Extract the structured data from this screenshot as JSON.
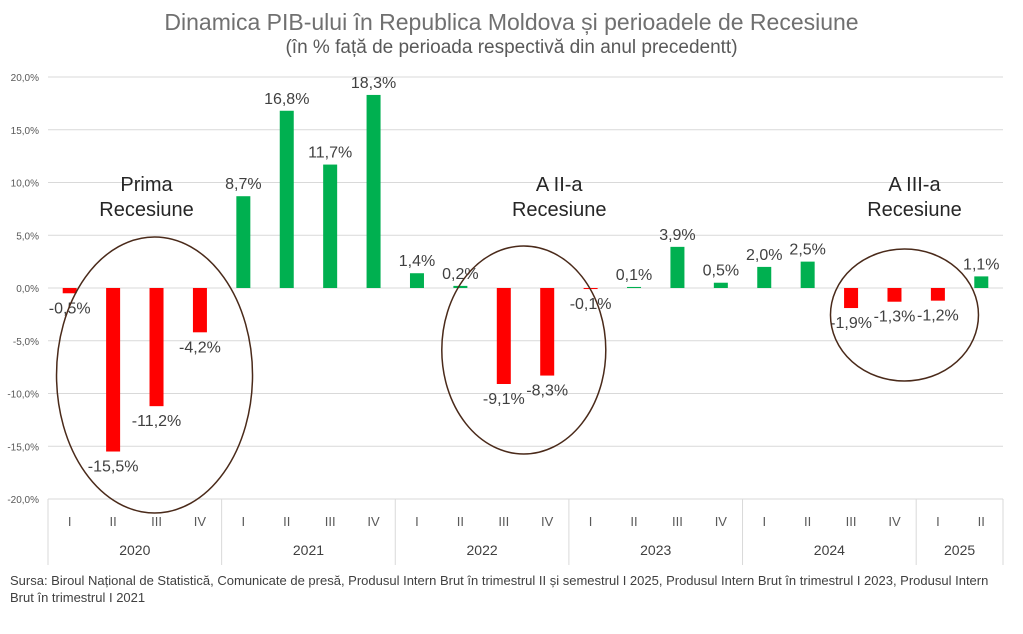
{
  "title": "Dinamica PIB-ului în Republica Moldova și perioadele de Recesiune",
  "subtitle": "(în % față de perioada respectivă din anul precedentt)",
  "source": "Sursa: Biroul Național de Statistică, Comunicate de presă, Produsul Intern Brut în trimestrul II și semestrul I 2025, Produsul Intern Brut în trimestrul I 2023, Produsul Intern Brut în trimestrul I 2021",
  "colors": {
    "positive": "#00b050",
    "negative": "#ff0000",
    "circle": "#4a2a1a",
    "grid": "#d9d9d9"
  },
  "annotations": [
    {
      "line1": "Prima",
      "line2": "Recesiune"
    },
    {
      "line1": "A II-a",
      "line2": "Recesiune"
    },
    {
      "line1": "A III-a",
      "line2": "Recesiune"
    }
  ],
  "chart_data": {
    "type": "bar",
    "ylim": [
      -20,
      20
    ],
    "yticks": [
      "-20,0%",
      "-15,0%",
      "-10,0%",
      "-5,0%",
      "0,0%",
      "5,0%",
      "10,0%",
      "15,0%",
      "20,0%"
    ],
    "grid": true,
    "years": [
      {
        "year": "2020",
        "quarters": [
          "I",
          "II",
          "III",
          "IV"
        ],
        "values": [
          -0.5,
          -15.5,
          -11.2,
          -4.2
        ],
        "labels": [
          "-0,5%",
          "-15,5%",
          "-11,2%",
          "-4,2%"
        ]
      },
      {
        "year": "2021",
        "quarters": [
          "I",
          "II",
          "III",
          "IV"
        ],
        "values": [
          8.7,
          16.8,
          11.7,
          18.3
        ],
        "labels": [
          "8,7%",
          "16,8%",
          "11,7%",
          "18,3%"
        ]
      },
      {
        "year": "2022",
        "quarters": [
          "I",
          "II",
          "III",
          "IV"
        ],
        "values": [
          1.4,
          0.2,
          -9.1,
          -8.3
        ],
        "labels": [
          "1,4%",
          "0,2%",
          "-9,1%",
          "-8,3%"
        ]
      },
      {
        "year": "2023",
        "quarters": [
          "I",
          "II",
          "III",
          "IV"
        ],
        "values": [
          -0.1,
          0.1,
          3.9,
          0.5
        ],
        "labels": [
          "-0,1%",
          "0,1%",
          "3,9%",
          "0,5%"
        ]
      },
      {
        "year": "2024",
        "quarters": [
          "I",
          "II",
          "III",
          "IV"
        ],
        "values": [
          2.0,
          2.5,
          -1.9,
          -1.3
        ],
        "labels": [
          "2,0%",
          "2,5%",
          "-1,9%",
          "-1,3%"
        ]
      },
      {
        "year": "2025",
        "quarters": [
          "I",
          "II"
        ],
        "values": [
          -1.2,
          1.1
        ],
        "labels": [
          "-1,2%",
          "1,1%"
        ]
      }
    ]
  }
}
